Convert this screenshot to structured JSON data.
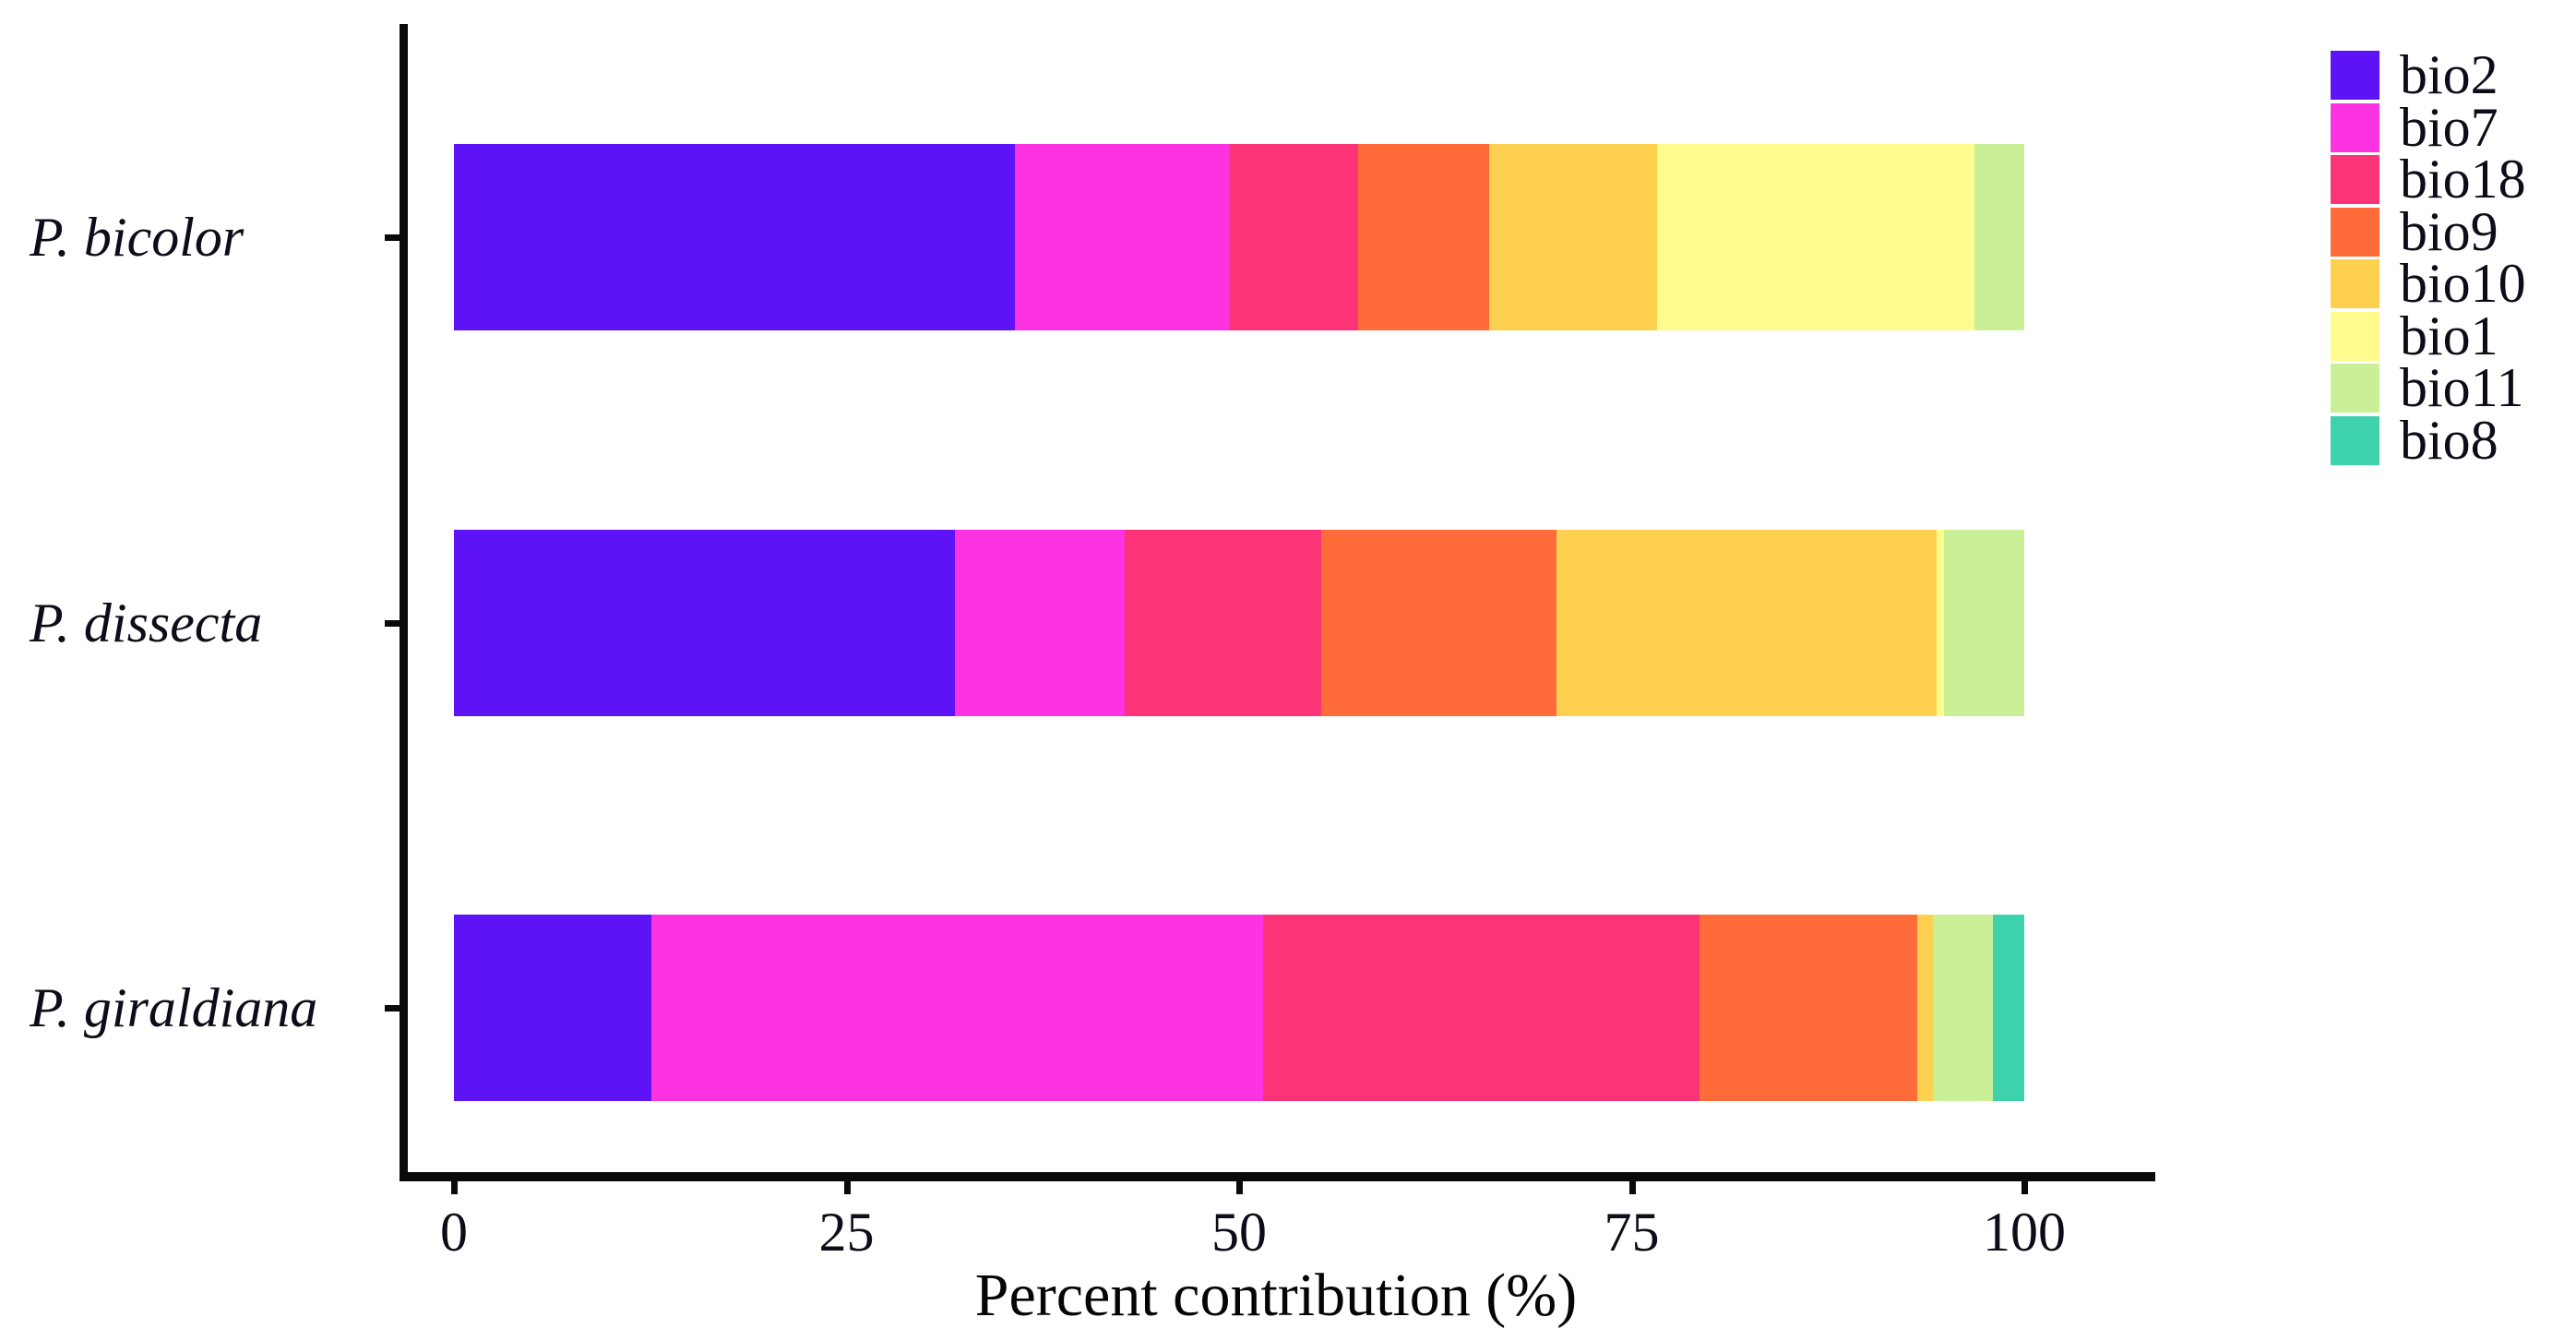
{
  "figure_title": "",
  "chart_data": {
    "type": "bar",
    "orientation": "horizontal",
    "stacked": true,
    "title": "",
    "xlabel": "Percent contribution (%)",
    "ylabel": "",
    "x_axis": {
      "label": "Percent contribution (%)",
      "ticks": [
        0,
        25,
        50,
        75,
        100
      ],
      "range": [
        0,
        100
      ],
      "grid": false
    },
    "categories": [
      "P. bicolor",
      "P. dissecta",
      "P. giraldiana"
    ],
    "legend": {
      "position": "top-right",
      "entries": [
        "bio2",
        "bio7",
        "bio18",
        "bio9",
        "bio10",
        "bio1",
        "bio11",
        "bio8"
      ]
    },
    "series": [
      {
        "name": "bio2",
        "color": "#5e13f7",
        "values": [
          35.7,
          31.9,
          12.6
        ]
      },
      {
        "name": "bio7",
        "color": "#fd33e2",
        "values": [
          13.7,
          10.8,
          38.9
        ]
      },
      {
        "name": "bio18",
        "color": "#fd3378",
        "values": [
          8.2,
          12.5,
          27.8
        ]
      },
      {
        "name": "bio9",
        "color": "#ff6c3a",
        "values": [
          8.3,
          15.0,
          13.9
        ]
      },
      {
        "name": "bio10",
        "color": "#fdd050",
        "values": [
          10.7,
          24.2,
          1.0
        ]
      },
      {
        "name": "bio1",
        "color": "#fffb8c",
        "values": [
          20.2,
          0.5,
          0
        ]
      },
      {
        "name": "bio11",
        "color": "#caf097",
        "values": [
          3.2,
          5.1,
          3.8
        ]
      },
      {
        "name": "bio8",
        "color": "#3dd2ac",
        "values": [
          0,
          0,
          2.0
        ]
      }
    ],
    "axis_color": "#0a0a0a",
    "background_color": "#ffffff"
  }
}
